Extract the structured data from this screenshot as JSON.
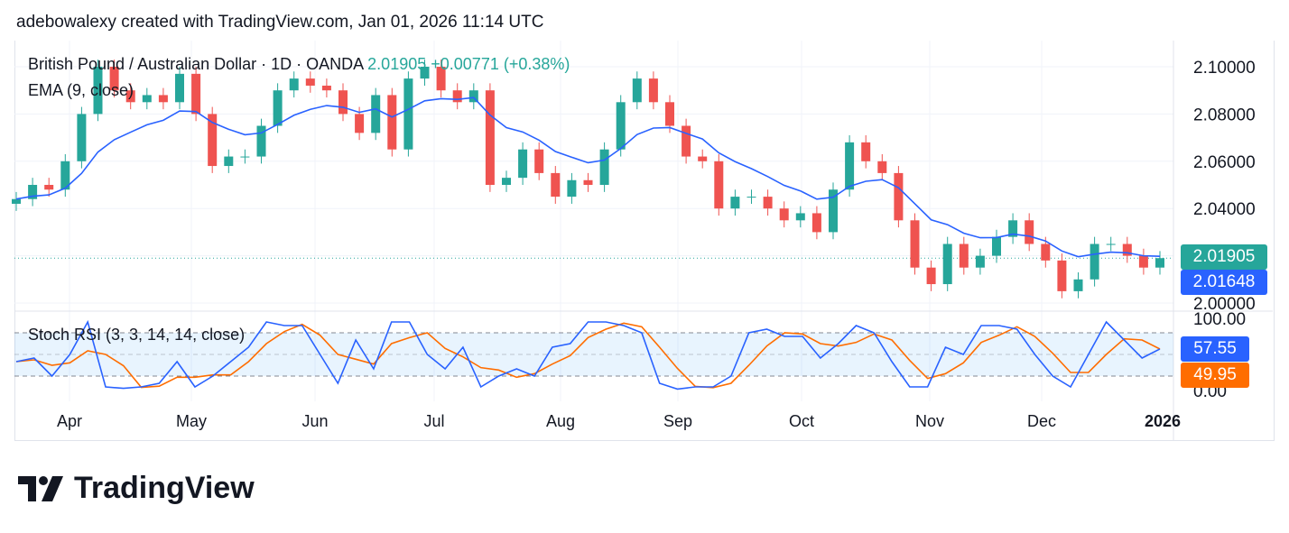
{
  "credit": "adebowalexy created with TradingView.com, Jan 01, 2026 11:14 UTC",
  "legend": {
    "symbol": "British Pound / Australian Dollar · 1D · OANDA",
    "price": "2.01905",
    "change": "+0.00771 (+0.38%)",
    "ema": "EMA (9, close)",
    "stoch": "Stoch RSI (3, 3, 14, 14, close)"
  },
  "tags": {
    "last": "2.01905",
    "ema": "2.01648",
    "k": "57.55",
    "d": "49.95"
  },
  "colors": {
    "up": "#26a69a",
    "down": "#ef5350",
    "ema": "#2962ff",
    "k": "#2962ff",
    "d": "#ff6d00"
  },
  "brand": "TradingView",
  "chart_data": {
    "type": "candlestick",
    "price_axis": {
      "ticks": [
        "2.10000",
        "2.08000",
        "2.06000",
        "2.04000",
        "2.00000"
      ],
      "range": [
        2.0,
        2.1
      ]
    },
    "time_axis": {
      "ticks": [
        "Apr",
        "May",
        "Jun",
        "Jul",
        "Aug",
        "Sep",
        "Oct",
        "Nov",
        "Dec",
        "2026"
      ]
    },
    "closes": [
      2.044,
      2.05,
      2.048,
      2.06,
      2.08,
      2.1,
      2.09,
      2.085,
      2.088,
      2.085,
      2.097,
      2.08,
      2.058,
      2.062,
      2.062,
      2.075,
      2.09,
      2.095,
      2.092,
      2.09,
      2.08,
      2.072,
      2.088,
      2.065,
      2.095,
      2.1,
      2.09,
      2.085,
      2.09,
      2.05,
      2.053,
      2.065,
      2.055,
      2.045,
      2.052,
      2.05,
      2.065,
      2.085,
      2.095,
      2.085,
      2.075,
      2.062,
      2.06,
      2.04,
      2.045,
      2.045,
      2.04,
      2.035,
      2.038,
      2.03,
      2.048,
      2.068,
      2.06,
      2.055,
      2.035,
      2.015,
      2.008,
      2.025,
      2.015,
      2.02,
      2.028,
      2.035,
      2.025,
      2.018,
      2.005,
      2.01,
      2.025,
      2.025,
      2.02,
      2.015,
      2.019
    ],
    "indicator": {
      "name": "Stoch RSI (3, 3, 14, 14, close)",
      "range": [
        0,
        100
      ],
      "ticks": [
        "100.00",
        "0.00"
      ],
      "bands": [
        80,
        20
      ],
      "k": [
        40,
        45,
        20,
        50,
        95,
        5,
        3,
        5,
        10,
        40,
        5,
        20,
        40,
        60,
        95,
        90,
        90,
        50,
        10,
        70,
        30,
        95,
        95,
        50,
        30,
        60,
        5,
        20,
        30,
        20,
        60,
        65,
        95,
        95,
        90,
        80,
        10,
        2,
        5,
        5,
        20,
        80,
        85,
        75,
        75,
        45,
        65,
        90,
        80,
        40,
        5,
        5,
        60,
        50,
        90,
        90,
        85,
        50,
        20,
        5,
        50,
        95,
        70,
        45,
        57.55
      ]
    }
  }
}
